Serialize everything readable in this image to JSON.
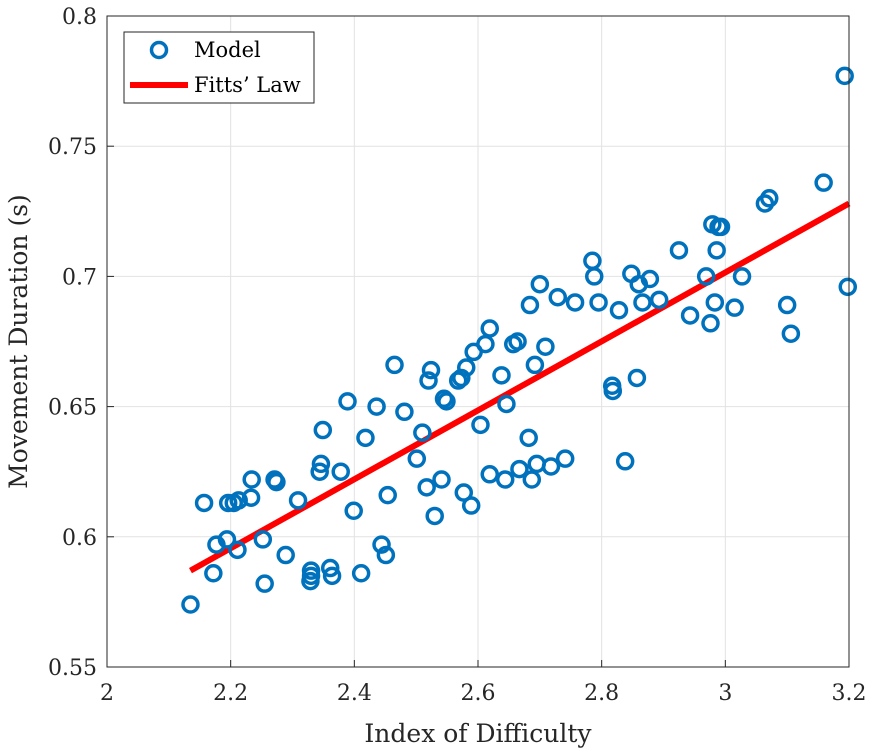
{
  "chart_data": {
    "type": "scatter",
    "xlabel": "Index of Difficulty",
    "ylabel": "Movement Duration (s)",
    "xlim": [
      2,
      3.2
    ],
    "ylim": [
      0.55,
      0.8
    ],
    "xticks": [
      "2",
      "2.2",
      "2.4",
      "2.6",
      "2.8",
      "3",
      "3.2"
    ],
    "yticks": [
      "0.55",
      "0.6",
      "0.65",
      "0.7",
      "0.75",
      "0.8"
    ],
    "grid": true,
    "legend_position": "top-left",
    "series": [
      {
        "name": "Model",
        "kind": "scatter",
        "marker": "circle-open",
        "color": "#0072BD",
        "points": [
          [
            2.135,
            0.574
          ],
          [
            2.157,
            0.613
          ],
          [
            2.172,
            0.586
          ],
          [
            2.177,
            0.597
          ],
          [
            2.194,
            0.599
          ],
          [
            2.196,
            0.613
          ],
          [
            2.205,
            0.613
          ],
          [
            2.211,
            0.595
          ],
          [
            2.213,
            0.614
          ],
          [
            2.233,
            0.615
          ],
          [
            2.234,
            0.622
          ],
          [
            2.252,
            0.599
          ],
          [
            2.255,
            0.582
          ],
          [
            2.271,
            0.622
          ],
          [
            2.274,
            0.621
          ],
          [
            2.289,
            0.593
          ],
          [
            2.309,
            0.614
          ],
          [
            2.329,
            0.583
          ],
          [
            2.33,
            0.585
          ],
          [
            2.33,
            0.587
          ],
          [
            2.344,
            0.625
          ],
          [
            2.346,
            0.628
          ],
          [
            2.349,
            0.641
          ],
          [
            2.361,
            0.588
          ],
          [
            2.364,
            0.585
          ],
          [
            2.378,
            0.625
          ],
          [
            2.389,
            0.652
          ],
          [
            2.399,
            0.61
          ],
          [
            2.411,
            0.586
          ],
          [
            2.418,
            0.638
          ],
          [
            2.436,
            0.65
          ],
          [
            2.444,
            0.597
          ],
          [
            2.451,
            0.593
          ],
          [
            2.454,
            0.616
          ],
          [
            2.465,
            0.666
          ],
          [
            2.481,
            0.648
          ],
          [
            2.501,
            0.63
          ],
          [
            2.51,
            0.64
          ],
          [
            2.517,
            0.619
          ],
          [
            2.52,
            0.66
          ],
          [
            2.524,
            0.664
          ],
          [
            2.53,
            0.608
          ],
          [
            2.541,
            0.622
          ],
          [
            2.545,
            0.653
          ],
          [
            2.549,
            0.652
          ],
          [
            2.568,
            0.66
          ],
          [
            2.573,
            0.661
          ],
          [
            2.577,
            0.617
          ],
          [
            2.581,
            0.665
          ],
          [
            2.589,
            0.612
          ],
          [
            2.593,
            0.671
          ],
          [
            2.604,
            0.643
          ],
          [
            2.612,
            0.674
          ],
          [
            2.619,
            0.624
          ],
          [
            2.619,
            0.68
          ],
          [
            2.638,
            0.662
          ],
          [
            2.644,
            0.622
          ],
          [
            2.646,
            0.651
          ],
          [
            2.657,
            0.674
          ],
          [
            2.664,
            0.675
          ],
          [
            2.667,
            0.626
          ],
          [
            2.682,
            0.638
          ],
          [
            2.684,
            0.689
          ],
          [
            2.687,
            0.622
          ],
          [
            2.692,
            0.666
          ],
          [
            2.695,
            0.628
          ],
          [
            2.7,
            0.697
          ],
          [
            2.709,
            0.673
          ],
          [
            2.718,
            0.627
          ],
          [
            2.729,
            0.692
          ],
          [
            2.741,
            0.63
          ],
          [
            2.757,
            0.69
          ],
          [
            2.785,
            0.706
          ],
          [
            2.788,
            0.7
          ],
          [
            2.795,
            0.69
          ],
          [
            2.817,
            0.658
          ],
          [
            2.818,
            0.656
          ],
          [
            2.828,
            0.687
          ],
          [
            2.838,
            0.629
          ],
          [
            2.848,
            0.701
          ],
          [
            2.857,
            0.661
          ],
          [
            2.86,
            0.697
          ],
          [
            2.866,
            0.69
          ],
          [
            2.878,
            0.699
          ],
          [
            2.893,
            0.691
          ],
          [
            2.925,
            0.71
          ],
          [
            2.943,
            0.685
          ],
          [
            2.969,
            0.7
          ],
          [
            2.976,
            0.682
          ],
          [
            2.979,
            0.72
          ],
          [
            2.983,
            0.69
          ],
          [
            2.986,
            0.71
          ],
          [
            2.989,
            0.719
          ],
          [
            2.993,
            0.719
          ],
          [
            3.015,
            0.688
          ],
          [
            3.027,
            0.7
          ],
          [
            3.064,
            0.728
          ],
          [
            3.071,
            0.73
          ],
          [
            3.1,
            0.689
          ],
          [
            3.106,
            0.678
          ],
          [
            3.159,
            0.736
          ],
          [
            3.193,
            0.777
          ],
          [
            3.198,
            0.696
          ]
        ]
      },
      {
        "name": "Fitts’ Law",
        "kind": "line",
        "color": "#FF0000",
        "x": [
          2.135,
          3.2
        ],
        "y": [
          0.587,
          0.728
        ]
      }
    ]
  }
}
